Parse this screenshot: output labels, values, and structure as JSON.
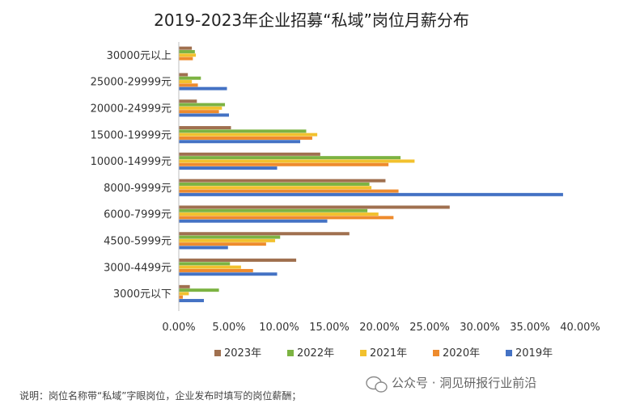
{
  "chart_data": {
    "type": "bar",
    "orientation": "horizontal",
    "title": "2019-2023年企业招募“私域”岗位月薪分布",
    "categories": [
      "30000元以上",
      "25000-29999元",
      "20000-24999元",
      "15000-19999元",
      "10000-14999元",
      "8000-9999元",
      "6000-7999元",
      "4500-5999元",
      "3000-4499元",
      "3000元以下"
    ],
    "series": [
      {
        "name": "2023年",
        "color": "#A0704F",
        "values": [
          1.3,
          0.9,
          1.8,
          5.2,
          14.1,
          20.6,
          27.0,
          17.0,
          11.7,
          1.1
        ]
      },
      {
        "name": "2022年",
        "color": "#7CB342",
        "values": [
          1.6,
          2.2,
          4.6,
          12.7,
          22.1,
          19.0,
          18.8,
          10.1,
          5.1,
          4.0
        ]
      },
      {
        "name": "2021年",
        "color": "#F2C12E",
        "values": [
          1.7,
          1.3,
          4.3,
          13.8,
          23.5,
          19.2,
          19.9,
          9.6,
          6.2,
          1.0
        ]
      },
      {
        "name": "2020年",
        "color": "#EE8B2D",
        "values": [
          1.4,
          1.9,
          4.0,
          13.3,
          20.9,
          21.9,
          21.4,
          8.7,
          7.4,
          0.4
        ]
      },
      {
        "name": "2019年",
        "color": "#4472C4",
        "values": [
          0.0,
          4.8,
          5.0,
          12.1,
          9.8,
          38.3,
          14.8,
          4.9,
          9.8,
          2.5
        ]
      }
    ],
    "xlim": [
      0,
      40
    ],
    "x_ticks": [
      "0.00%",
      "5.00%",
      "10.00%",
      "15.00%",
      "20.00%",
      "25.00%",
      "30.00%",
      "35.00%",
      "40.00%"
    ],
    "legend_position": "bottom",
    "grid": false
  },
  "note": "说明：岗位名称带“私域”字眼岗位，企业发布时填写的岗位薪酬；",
  "watermark": "公众号 · 洞见研报行业前沿"
}
